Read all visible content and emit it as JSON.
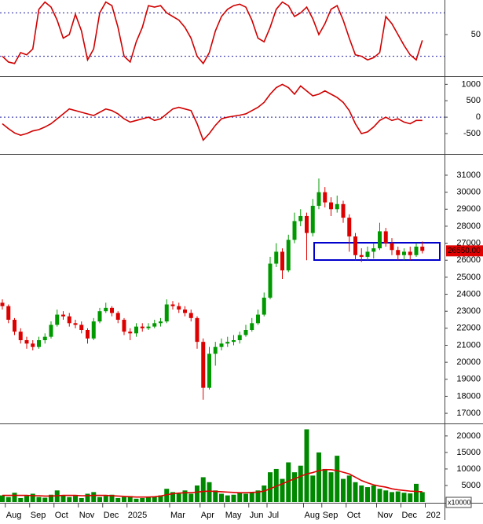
{
  "chart_data": [
    {
      "type": "line",
      "color": "#d00000",
      "ylim": [
        0,
        100
      ],
      "yticks": [
        50
      ],
      "ref_lines": [
        20,
        80
      ],
      "ref_color": "#1a1aa0",
      "values": [
        20,
        12,
        10,
        25,
        22,
        30,
        85,
        95,
        88,
        70,
        45,
        50,
        78,
        55,
        15,
        30,
        80,
        95,
        90,
        60,
        20,
        12,
        40,
        60,
        90,
        88,
        90,
        80,
        75,
        70,
        60,
        45,
        20,
        10,
        25,
        55,
        75,
        85,
        90,
        92,
        88,
        70,
        45,
        40,
        60,
        85,
        95,
        90,
        75,
        80,
        88,
        72,
        50,
        65,
        85,
        90,
        70,
        45,
        22,
        20,
        15,
        18,
        25,
        75,
        65,
        50,
        35,
        22,
        15,
        42,
        null
      ]
    },
    {
      "type": "line",
      "color": "#d00000",
      "ylim": [
        -1050,
        1200
      ],
      "yticks": [
        -500,
        0,
        500,
        1000
      ],
      "ref_lines": [
        0
      ],
      "ref_color": "#1a1aa0",
      "values": [
        -200,
        -350,
        -480,
        -550,
        -500,
        -420,
        -380,
        -300,
        -200,
        -50,
        100,
        250,
        200,
        150,
        100,
        50,
        150,
        250,
        200,
        100,
        -50,
        -150,
        -100,
        -50,
        0,
        -100,
        -50,
        100,
        250,
        300,
        250,
        200,
        -200,
        -700,
        -500,
        -250,
        -50,
        0,
        30,
        60,
        100,
        200,
        300,
        450,
        700,
        900,
        1000,
        900,
        700,
        950,
        800,
        650,
        700,
        800,
        700,
        600,
        450,
        200,
        -200,
        -500,
        -450,
        -300,
        -100,
        0,
        -100,
        -50,
        -150,
        -200,
        -100,
        -100,
        null
      ]
    },
    {
      "type": "candlestick",
      "up_color": "#009900",
      "down_color": "#dd0000",
      "ylim": [
        16450,
        32200
      ],
      "yticks": [
        17000,
        18000,
        19000,
        20000,
        21000,
        22000,
        23000,
        24000,
        25000,
        26000,
        27000,
        28000,
        29000,
        30000,
        31000
      ],
      "last_value_label": "26550.00",
      "open": [
        23500,
        23300,
        22500,
        21800,
        21300,
        21100,
        20900,
        21300,
        21500,
        22200,
        22800,
        22700,
        22300,
        22200,
        21900,
        21400,
        22400,
        23000,
        23200,
        22900,
        22500,
        21800,
        21700,
        22100,
        22000,
        22100,
        22300,
        22400,
        23400,
        23300,
        23100,
        22900,
        22600,
        21200,
        18500,
        20500,
        20900,
        21100,
        21200,
        21300,
        21600,
        21900,
        22300,
        22800,
        23800,
        25800,
        26500,
        25400,
        27200,
        28300,
        28600,
        27600,
        29200,
        30000,
        29400,
        29000,
        29300,
        28500,
        27400,
        26300,
        26200,
        26500,
        26700,
        27700,
        27000,
        26600,
        26300,
        26500,
        26300,
        26800,
        null
      ],
      "high": [
        23700,
        23400,
        22600,
        22000,
        21500,
        21300,
        21500,
        21700,
        22400,
        23100,
        23000,
        22900,
        22500,
        22400,
        22000,
        22600,
        23200,
        23500,
        23300,
        23000,
        22600,
        22000,
        22300,
        22300,
        22300,
        22500,
        22600,
        23700,
        23600,
        23500,
        23300,
        23100,
        22700,
        21400,
        20900,
        21200,
        21400,
        21500,
        21600,
        21800,
        22200,
        22600,
        23100,
        24100,
        26200,
        27000,
        26700,
        27500,
        28800,
        29000,
        28800,
        29600,
        30800,
        30300,
        29700,
        29800,
        29500,
        28700,
        27600,
        26700,
        26800,
        27000,
        28200,
        27900,
        27300,
        26800,
        26700,
        26800,
        27000,
        27100,
        null
      ],
      "low": [
        23100,
        22300,
        21600,
        21100,
        20800,
        20700,
        20800,
        21100,
        21400,
        22100,
        22500,
        22100,
        22000,
        21700,
        21100,
        21300,
        22300,
        22900,
        22700,
        22300,
        21600,
        21300,
        21500,
        21800,
        21900,
        22000,
        22100,
        22300,
        23100,
        22900,
        22700,
        22400,
        20800,
        17800,
        18400,
        19800,
        20700,
        20900,
        21000,
        21100,
        21500,
        21800,
        22200,
        22700,
        23700,
        25600,
        24900,
        25300,
        27000,
        28000,
        26000,
        27400,
        29000,
        29100,
        28600,
        28800,
        28200,
        26500,
        26000,
        25900,
        26000,
        26100,
        26600,
        26800,
        26300,
        26000,
        26000,
        26000,
        26200,
        26400,
        null
      ],
      "close": [
        23300,
        22500,
        21800,
        21300,
        21100,
        20900,
        21300,
        21500,
        22200,
        22800,
        22700,
        22300,
        22200,
        21900,
        21400,
        22400,
        23000,
        23200,
        22900,
        22500,
        21800,
        21700,
        22100,
        22000,
        22100,
        22300,
        22400,
        23400,
        23300,
        23100,
        22900,
        22600,
        21200,
        18500,
        20500,
        20900,
        21100,
        21200,
        21300,
        21600,
        21900,
        22300,
        22800,
        23800,
        25800,
        26500,
        25400,
        27200,
        28300,
        28600,
        27600,
        29200,
        30000,
        29400,
        29000,
        29300,
        28500,
        27400,
        26300,
        26200,
        26500,
        26700,
        27700,
        27000,
        26600,
        26300,
        26500,
        26300,
        26800,
        26550,
        null
      ]
    },
    {
      "type": "bar",
      "color": "#008800",
      "ylim": [
        0,
        23300
      ],
      "yticks": [
        5000,
        10000,
        15000,
        20000
      ],
      "unit_label": "x10000",
      "categories": [
        null,
        "Aug",
        null,
        null,
        null,
        "Sep",
        null,
        null,
        null,
        "Oct",
        null,
        null,
        null,
        "Nov",
        null,
        null,
        null,
        "Dec",
        null,
        null,
        null,
        "2025",
        null,
        null,
        null,
        null,
        null,
        null,
        "Mar",
        null,
        null,
        null,
        null,
        "Apr",
        null,
        null,
        null,
        "May",
        null,
        null,
        null,
        "Jun",
        null,
        null,
        "Jul",
        null,
        null,
        null,
        null,
        null,
        "Aug",
        null,
        null,
        "Sep",
        null,
        null,
        null,
        "Oct",
        null,
        null,
        null,
        null,
        "Nov",
        null,
        null,
        null,
        "Dec",
        null,
        null,
        null,
        "202"
      ],
      "values": [
        2000,
        1500,
        2800,
        1200,
        1800,
        2500,
        1500,
        1300,
        2200,
        3500,
        2000,
        1500,
        1800,
        1200,
        2500,
        3000,
        1500,
        1800,
        2200,
        1200,
        1500,
        1800,
        1000,
        1200,
        1500,
        1700,
        2000,
        4000,
        3000,
        2500,
        3500,
        2500,
        5000,
        7500,
        6000,
        3500,
        2500,
        2000,
        2200,
        2800,
        2500,
        3000,
        3500,
        5000,
        9000,
        10000,
        7000,
        12000,
        9000,
        11000,
        22000,
        8000,
        15000,
        10000,
        9000,
        14000,
        7000,
        8000,
        6000,
        5000,
        4500,
        5000,
        4000,
        3500,
        3000,
        3200,
        2800,
        2600,
        5500,
        3000,
        null
      ],
      "overlay_line": {
        "color": "#dd0000",
        "values": [
          2000,
          2000,
          2000,
          2000,
          2000,
          1900,
          1900,
          1800,
          1800,
          1900,
          2000,
          2000,
          2000,
          1900,
          1900,
          2000,
          2000,
          2000,
          1900,
          1800,
          1700,
          1600,
          1500,
          1500,
          1500,
          1600,
          1800,
          2200,
          2500,
          2700,
          2800,
          2800,
          3000,
          3200,
          3300,
          3200,
          3100,
          3000,
          2900,
          2800,
          2800,
          2900,
          3000,
          3300,
          4000,
          4800,
          5500,
          6300,
          7000,
          7800,
          8500,
          8900,
          9500,
          9800,
          9800,
          9500,
          9000,
          8500,
          7500,
          6500,
          5800,
          5200,
          4800,
          4500,
          4000,
          3700,
          3500,
          3300,
          3200,
          3100,
          null
        ]
      }
    }
  ]
}
